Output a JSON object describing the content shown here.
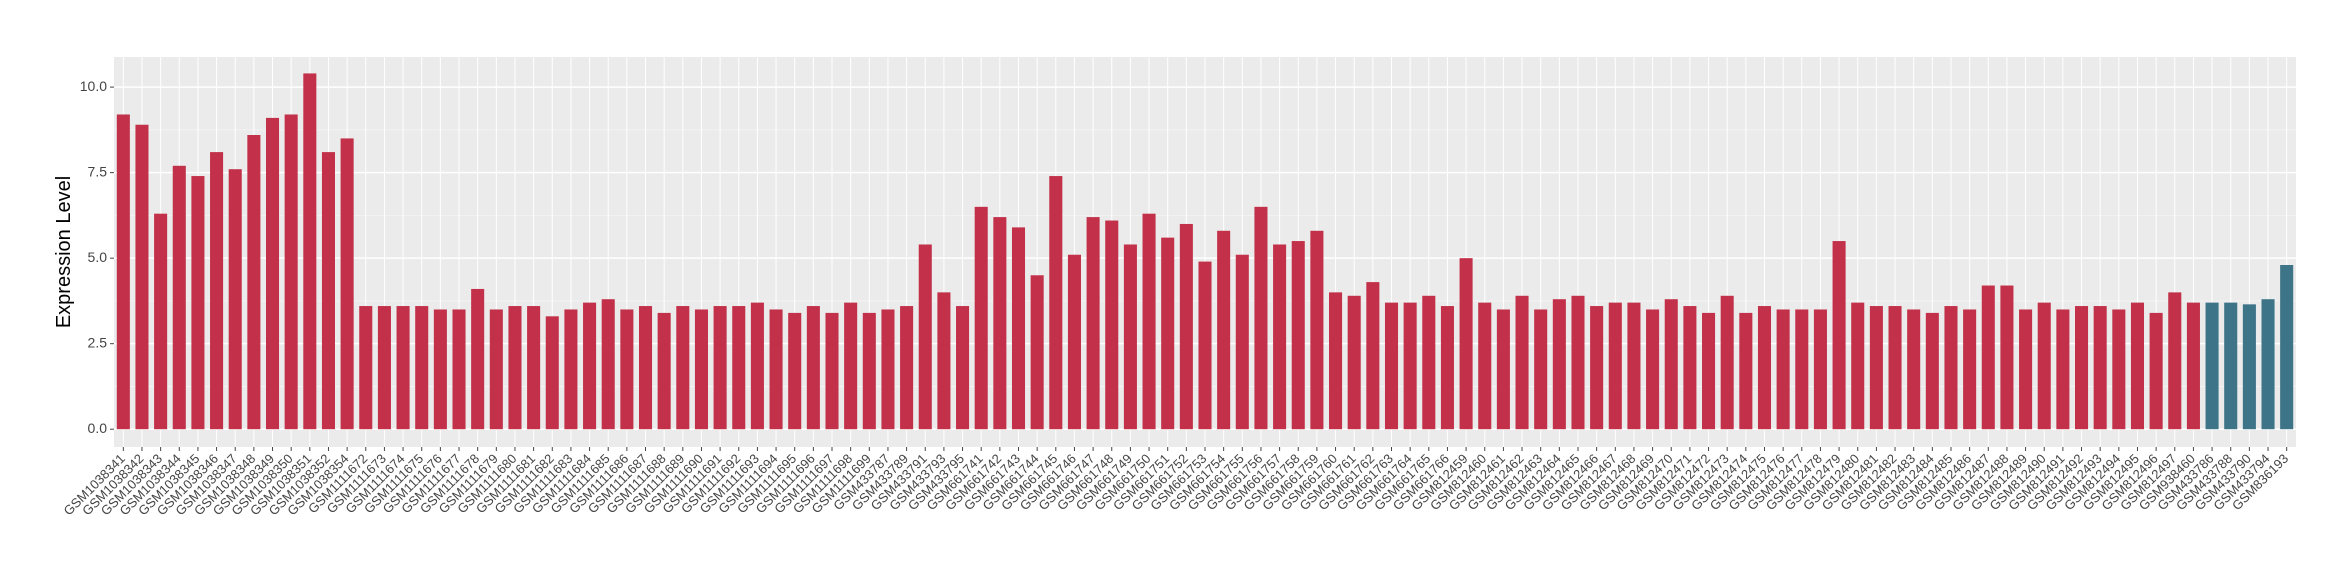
{
  "chart_data": {
    "type": "bar",
    "y_label": "Expression Level",
    "categories": [
      "GSM1038341",
      "GSM1038342",
      "GSM1038343",
      "GSM1038344",
      "GSM1038345",
      "GSM1038346",
      "GSM1038347",
      "GSM1038348",
      "GSM1038349",
      "GSM1038350",
      "GSM1038351",
      "GSM1038352",
      "GSM1038354",
      "GSM1111672",
      "GSM1111673",
      "GSM1111674",
      "GSM1111675",
      "GSM1111676",
      "GSM1111677",
      "GSM1111678",
      "GSM1111679",
      "GSM1111680",
      "GSM1111681",
      "GSM1111682",
      "GSM1111683",
      "GSM1111684",
      "GSM1111685",
      "GSM1111686",
      "GSM1111687",
      "GSM1111688",
      "GSM1111689",
      "GSM1111690",
      "GSM1111691",
      "GSM1111692",
      "GSM1111693",
      "GSM1111694",
      "GSM1111695",
      "GSM1111696",
      "GSM1111697",
      "GSM1111698",
      "GSM1111699",
      "GSM433787",
      "GSM433789",
      "GSM433791",
      "GSM433793",
      "GSM433795",
      "GSM661741",
      "GSM661742",
      "GSM661743",
      "GSM661744",
      "GSM661745",
      "GSM661746",
      "GSM661747",
      "GSM661748",
      "GSM661749",
      "GSM661750",
      "GSM661751",
      "GSM661752",
      "GSM661753",
      "GSM661754",
      "GSM661755",
      "GSM661756",
      "GSM661757",
      "GSM661758",
      "GSM661759",
      "GSM661760",
      "GSM661761",
      "GSM661762",
      "GSM661763",
      "GSM661764",
      "GSM661765",
      "GSM661766",
      "GSM812459",
      "GSM812460",
      "GSM812461",
      "GSM812462",
      "GSM812463",
      "GSM812464",
      "GSM812465",
      "GSM812466",
      "GSM812467",
      "GSM812468",
      "GSM812469",
      "GSM812470",
      "GSM812471",
      "GSM812472",
      "GSM812473",
      "GSM812474",
      "GSM812475",
      "GSM812476",
      "GSM812477",
      "GSM812478",
      "GSM812479",
      "GSM812480",
      "GSM812481",
      "GSM812482",
      "GSM812483",
      "GSM812484",
      "GSM812485",
      "GSM812486",
      "GSM812487",
      "GSM812488",
      "GSM812489",
      "GSM812490",
      "GSM812491",
      "GSM812492",
      "GSM812493",
      "GSM812494",
      "GSM812495",
      "GSM812496",
      "GSM812497",
      "GSM938460",
      "GSM433786",
      "GSM433788",
      "GSM433790",
      "GSM433794",
      "GSM836193"
    ],
    "values": [
      9.2,
      8.9,
      6.3,
      7.7,
      7.4,
      8.1,
      7.6,
      8.6,
      9.1,
      9.2,
      10.4,
      8.1,
      8.5,
      3.6,
      3.6,
      3.6,
      3.6,
      3.5,
      3.5,
      4.1,
      3.5,
      3.6,
      3.6,
      3.3,
      3.5,
      3.7,
      3.8,
      3.5,
      3.6,
      3.4,
      3.6,
      3.5,
      3.6,
      3.6,
      3.7,
      3.5,
      3.4,
      3.6,
      3.4,
      3.7,
      3.4,
      3.5,
      3.6,
      5.4,
      4.0,
      3.6,
      6.5,
      6.2,
      5.9,
      4.5,
      7.4,
      5.1,
      6.2,
      6.1,
      5.4,
      6.3,
      5.6,
      6.0,
      4.9,
      5.8,
      5.1,
      6.5,
      5.4,
      5.5,
      5.8,
      4.0,
      3.9,
      4.3,
      3.7,
      3.7,
      3.9,
      3.6,
      5.0,
      3.7,
      3.5,
      3.9,
      3.5,
      3.8,
      3.9,
      3.6,
      3.7,
      3.7,
      3.5,
      3.8,
      3.6,
      3.4,
      3.9,
      3.4,
      3.6,
      3.5,
      3.5,
      3.5,
      5.5,
      3.7,
      3.6,
      3.6,
      3.5,
      3.4,
      3.6,
      3.5,
      4.2,
      4.2,
      3.5,
      3.7,
      3.5,
      3.6,
      3.6,
      3.5,
      3.7,
      3.4,
      4.0,
      3.7,
      3.7,
      3.7,
      3.65,
      3.8,
      4.8
    ],
    "colors": [
      "#c23149",
      "#c23149",
      "#c23149",
      "#c23149",
      "#c23149",
      "#c23149",
      "#c23149",
      "#c23149",
      "#c23149",
      "#c23149",
      "#c23149",
      "#c23149",
      "#c23149",
      "#c23149",
      "#c23149",
      "#c23149",
      "#c23149",
      "#c23149",
      "#c23149",
      "#c23149",
      "#c23149",
      "#c23149",
      "#c23149",
      "#c23149",
      "#c23149",
      "#c23149",
      "#c23149",
      "#c23149",
      "#c23149",
      "#c23149",
      "#c23149",
      "#c23149",
      "#c23149",
      "#c23149",
      "#c23149",
      "#c23149",
      "#c23149",
      "#c23149",
      "#c23149",
      "#c23149",
      "#c23149",
      "#c23149",
      "#c23149",
      "#c23149",
      "#c23149",
      "#c23149",
      "#c23149",
      "#c23149",
      "#c23149",
      "#c23149",
      "#c23149",
      "#c23149",
      "#c23149",
      "#c23149",
      "#c23149",
      "#c23149",
      "#c23149",
      "#c23149",
      "#c23149",
      "#c23149",
      "#c23149",
      "#c23149",
      "#c23149",
      "#c23149",
      "#c23149",
      "#c23149",
      "#c23149",
      "#c23149",
      "#c23149",
      "#c23149",
      "#c23149",
      "#c23149",
      "#c23149",
      "#c23149",
      "#c23149",
      "#c23149",
      "#c23149",
      "#c23149",
      "#c23149",
      "#c23149",
      "#c23149",
      "#c23149",
      "#c23149",
      "#c23149",
      "#c23149",
      "#c23149",
      "#c23149",
      "#c23149",
      "#c23149",
      "#c23149",
      "#c23149",
      "#c23149",
      "#c23149",
      "#c23149",
      "#c23149",
      "#c23149",
      "#c23149",
      "#c23149",
      "#c23149",
      "#c23149",
      "#c23149",
      "#c23149",
      "#c23149",
      "#c23149",
      "#c23149",
      "#c23149",
      "#c23149",
      "#c23149",
      "#c23149",
      "#c23149",
      "#c23149",
      "#c23149",
      "#3d7487",
      "#3d7487",
      "#3d7487",
      "#3d7487",
      "#3d7487"
    ],
    "ylim": [
      -0.52,
      10.88
    ],
    "yticks": [
      {
        "value": 0,
        "label": "0.0"
      },
      {
        "value": 2.5,
        "label": "2.5"
      },
      {
        "value": 5,
        "label": "5.0"
      },
      {
        "value": 7.5,
        "label": "7.5"
      },
      {
        "value": 10,
        "label": "10.0"
      }
    ],
    "grid": true
  }
}
